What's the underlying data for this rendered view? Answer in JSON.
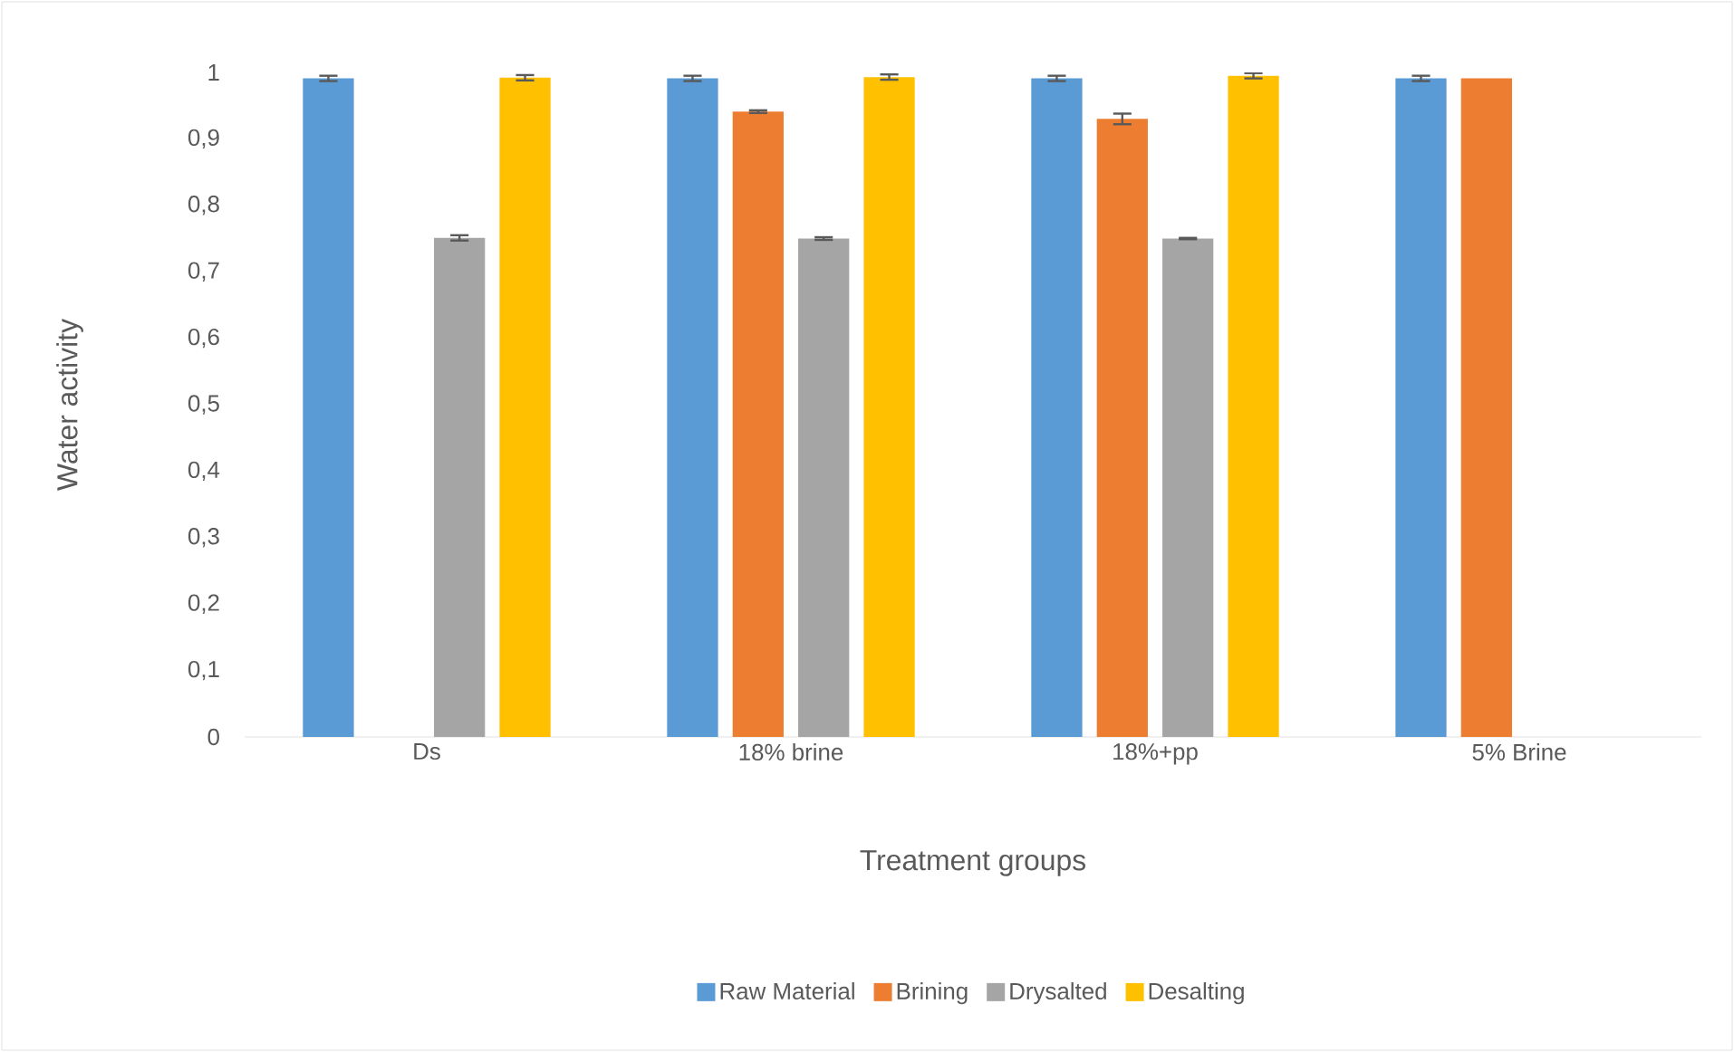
{
  "chart_data": {
    "type": "bar",
    "xlabel": "Treatment groups",
    "ylabel": "Water activity",
    "categories": [
      "Ds",
      "18% brine",
      "18%+pp",
      "5% Brine"
    ],
    "series": [
      {
        "name": "Raw Material",
        "color": "#5b9bd5",
        "values": [
          0.991,
          0.991,
          0.991,
          0.991
        ],
        "errors": [
          0.004,
          0.004,
          0.004,
          0.004
        ]
      },
      {
        "name": "Brining",
        "color": "#ed7d31",
        "values": [
          null,
          0.941,
          0.93,
          0.991
        ],
        "errors": [
          null,
          0.002,
          0.008,
          null
        ]
      },
      {
        "name": "Drysalted",
        "color": "#a5a5a5",
        "values": [
          0.751,
          0.75,
          0.75,
          null
        ],
        "errors": [
          0.004,
          0.002,
          0.001,
          null
        ]
      },
      {
        "name": "Desalting",
        "color": "#ffc000",
        "values": [
          0.992,
          0.993,
          0.995,
          null
        ],
        "errors": [
          0.004,
          0.004,
          0.004,
          null
        ]
      }
    ],
    "ylim": [
      0,
      1
    ],
    "yticks": [
      {
        "value": 0,
        "label": "0"
      },
      {
        "value": 0.1,
        "label": "0,1"
      },
      {
        "value": 0.2,
        "label": "0,2"
      },
      {
        "value": 0.3,
        "label": "0,3"
      },
      {
        "value": 0.4,
        "label": "0,4"
      },
      {
        "value": 0.5,
        "label": "0,5"
      },
      {
        "value": 0.6,
        "label": "0,6"
      },
      {
        "value": 0.7,
        "label": "0,7"
      },
      {
        "value": 0.8,
        "label": "0,8"
      },
      {
        "value": 0.9,
        "label": "0,9"
      },
      {
        "value": 1,
        "label": "1"
      }
    ],
    "grid": false,
    "legend": "bottom"
  }
}
